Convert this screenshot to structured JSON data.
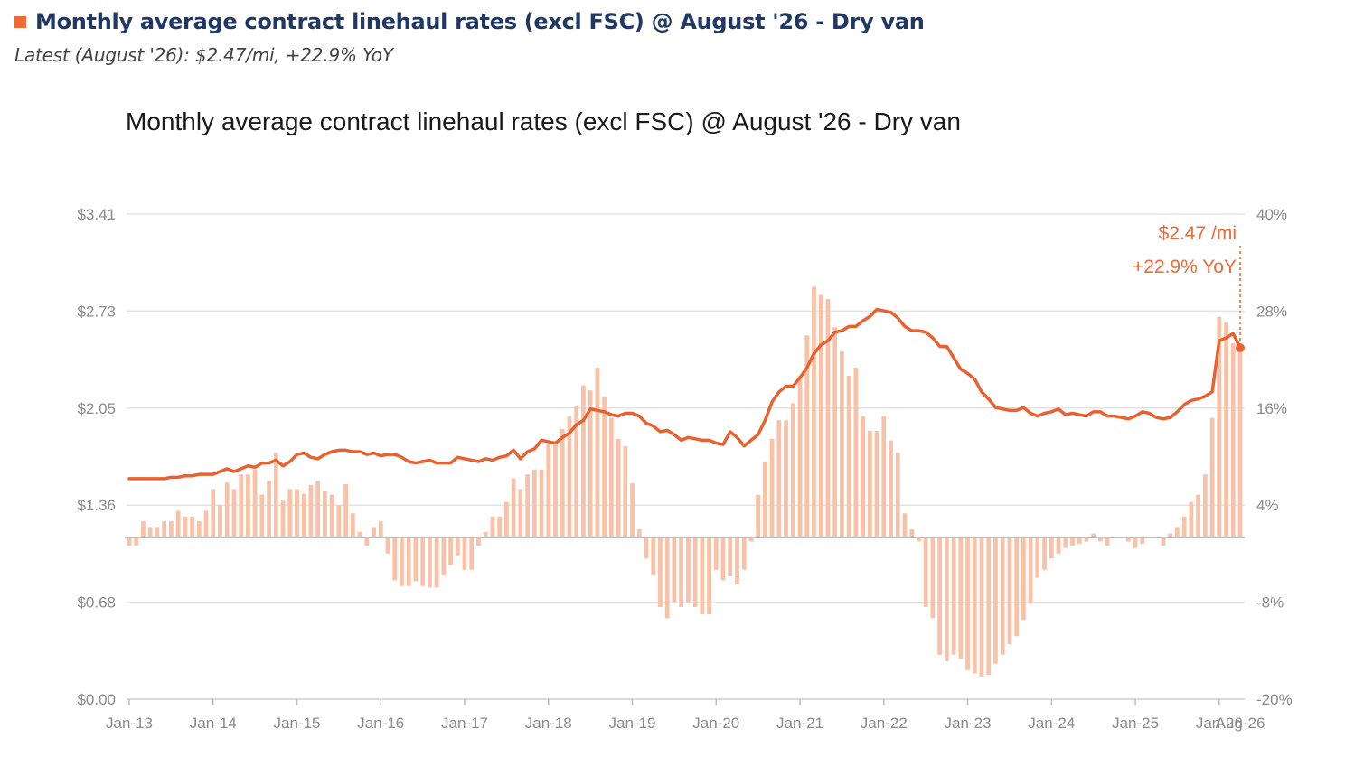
{
  "header": {
    "title": "Monthly average contract linehaul rates (excl FSC) @ August '26 - Dry van",
    "subtitle": "Latest (August '26): $2.47/mi, +22.9% YoY"
  },
  "colors": {
    "header_square": "#f06a35",
    "header_title": "#1f3864",
    "line": "#e8612f",
    "bars": "#f8c2a8",
    "annotation": "#ee6a35",
    "gridline": "#e3e3e3",
    "zeroline": "#bdbdbd",
    "tick_label": "#8a8a8a"
  },
  "chart_data": {
    "type": "line+bar",
    "title": "Monthly average contract linehaul rates (excl FSC) @ August '26 - Dry van",
    "start_month": "Jan-13",
    "end_month": "Aug-26",
    "x_tick_labels": [
      "Jan-13",
      "Jan-14",
      "Jan-15",
      "Jan-16",
      "Jan-17",
      "Jan-18",
      "Jan-19",
      "Jan-20",
      "Jan-21",
      "Jan-22",
      "Jan-23",
      "Jan-24",
      "Jan-25",
      "Jan-26",
      "Aug-26"
    ],
    "left_axis": {
      "tick_labels": [
        "$0.00",
        "$0.68",
        "$1.36",
        "$2.05",
        "$2.73",
        "$3.41"
      ],
      "ylim": [
        0,
        3.41
      ]
    },
    "right_axis": {
      "tick_labels": [
        "-20%",
        "-8%",
        "4%",
        "16%",
        "28%",
        "40%"
      ],
      "ylim": [
        -20,
        40
      ]
    },
    "grid": true,
    "annotation": {
      "value_label": "$2.47 /mi",
      "yoy_label": "+22.9% YoY",
      "rate": 2.47,
      "yoy": 22.9
    },
    "series": [
      {
        "kind": "line",
        "axis": "left",
        "unit": "$/mi",
        "values": [
          1.55,
          1.55,
          1.55,
          1.55,
          1.55,
          1.55,
          1.56,
          1.56,
          1.57,
          1.57,
          1.58,
          1.58,
          1.58,
          1.6,
          1.62,
          1.6,
          1.62,
          1.64,
          1.63,
          1.66,
          1.66,
          1.68,
          1.64,
          1.67,
          1.72,
          1.73,
          1.7,
          1.69,
          1.72,
          1.74,
          1.75,
          1.75,
          1.74,
          1.74,
          1.72,
          1.73,
          1.71,
          1.72,
          1.72,
          1.7,
          1.67,
          1.66,
          1.67,
          1.68,
          1.66,
          1.66,
          1.66,
          1.7,
          1.69,
          1.68,
          1.67,
          1.69,
          1.68,
          1.7,
          1.71,
          1.75,
          1.69,
          1.74,
          1.76,
          1.82,
          1.81,
          1.8,
          1.84,
          1.87,
          1.93,
          1.96,
          2.04,
          2.03,
          2.02,
          2.0,
          1.99,
          2.01,
          2.01,
          1.99,
          1.94,
          1.92,
          1.88,
          1.89,
          1.86,
          1.82,
          1.84,
          1.83,
          1.82,
          1.82,
          1.8,
          1.79,
          1.88,
          1.84,
          1.78,
          1.82,
          1.86,
          1.96,
          2.09,
          2.16,
          2.2,
          2.2,
          2.26,
          2.33,
          2.43,
          2.49,
          2.52,
          2.58,
          2.59,
          2.62,
          2.62,
          2.66,
          2.69,
          2.74,
          2.73,
          2.72,
          2.68,
          2.62,
          2.59,
          2.59,
          2.58,
          2.54,
          2.48,
          2.48,
          2.4,
          2.32,
          2.29,
          2.25,
          2.16,
          2.11,
          2.05,
          2.04,
          2.03,
          2.03,
          2.05,
          2.01,
          1.99,
          2.01,
          2.02,
          2.04,
          2.0,
          2.01,
          2.0,
          1.99,
          2.02,
          2.02,
          1.99,
          1.99,
          1.98,
          1.97,
          1.99,
          2.02,
          2.01,
          1.98,
          1.97,
          1.98,
          2.02,
          2.07,
          2.1,
          2.11,
          2.13,
          2.16,
          2.52,
          2.54,
          2.57,
          2.47
        ]
      },
      {
        "kind": "bar",
        "axis": "right",
        "unit": "% YoY",
        "values": [
          -1.0,
          -1.0,
          2.0,
          1.3,
          1.3,
          2.0,
          2.0,
          3.3,
          2.6,
          2.6,
          2.0,
          3.3,
          6.0,
          4.0,
          6.8,
          6.0,
          7.8,
          7.8,
          8.4,
          5.3,
          7.0,
          10.5,
          4.7,
          6.0,
          6.0,
          5.4,
          6.5,
          7.0,
          5.7,
          5.3,
          4.0,
          6.6,
          3.0,
          0.7,
          -1.0,
          1.3,
          2.0,
          -2.0,
          -5.3,
          -6.0,
          -6.0,
          -5.4,
          -6.0,
          -6.2,
          -6.2,
          -4.7,
          -3.4,
          -2.2,
          -4.0,
          -4.0,
          -1.0,
          0.7,
          2.6,
          2.6,
          4.4,
          7.3,
          6.0,
          7.8,
          8.4,
          8.4,
          11.6,
          11.6,
          13.4,
          15.0,
          16.2,
          18.8,
          18.2,
          21.0,
          17.4,
          14.8,
          12.2,
          11.3,
          6.7,
          1.0,
          -2.6,
          -4.7,
          -8.6,
          -10.0,
          -8.0,
          -8.6,
          -8.0,
          -8.6,
          -9.5,
          -9.5,
          -4.0,
          -5.3,
          -4.8,
          -5.8,
          -4.0,
          -0.5,
          5.3,
          9.3,
          12.2,
          14.5,
          14.5,
          16.6,
          20.0,
          25.0,
          31.0,
          30.0,
          29.5,
          26.0,
          23.0,
          20.0,
          21.0,
          15.0,
          13.2,
          13.2,
          15.0,
          12.0,
          10.5,
          3.0,
          1.0,
          -0.5,
          -8.6,
          -10.0,
          -14.5,
          -15.3,
          -14.5,
          -15.0,
          -16.4,
          -16.8,
          -17.2,
          -17.0,
          -15.6,
          -14.5,
          -13.2,
          -12.2,
          -10.2,
          -8.2,
          -5.0,
          -4.0,
          -2.6,
          -2.0,
          -1.3,
          -1.0,
          -0.8,
          -0.5,
          0.5,
          -0.5,
          -1.0,
          0.0,
          0.0,
          -0.5,
          -1.3,
          -0.8,
          0.0,
          0.0,
          -1.0,
          0.5,
          1.3,
          2.6,
          4.4,
          5.3,
          7.8,
          14.8,
          27.3,
          26.6,
          24.0,
          22.9
        ]
      }
    ]
  }
}
